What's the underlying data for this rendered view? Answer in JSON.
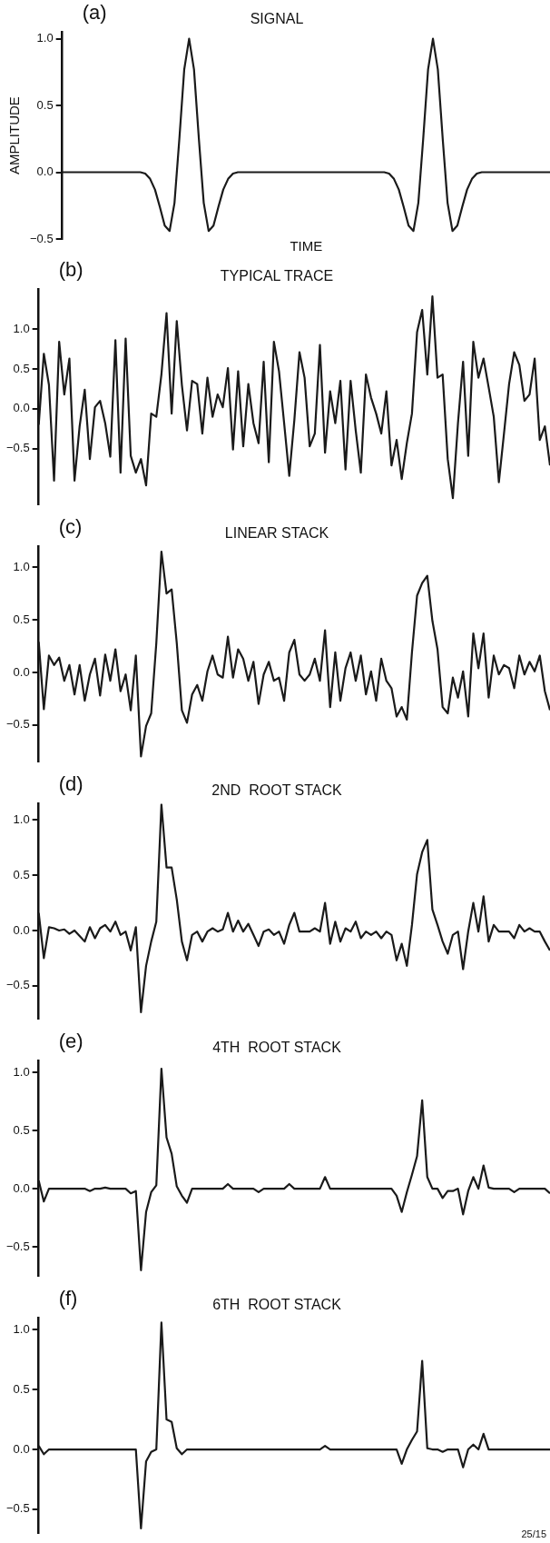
{
  "chart_data": [
    {
      "type": "line",
      "title": "SIGNAL",
      "xlabel": "TIME",
      "ylabel": "AMPLITUDE",
      "annotations": [
        "(a)"
      ],
      "color": "#1a1a1a",
      "tick_labels": "y",
      "grid": false,
      "categories": [
        null,
        null,
        null,
        null,
        null,
        null,
        null,
        null,
        null,
        null,
        null,
        null,
        null,
        null,
        null,
        null,
        null,
        null,
        null,
        null,
        null,
        null,
        null,
        null,
        null,
        null,
        null,
        null,
        null,
        null,
        null,
        null,
        null,
        null,
        null,
        null,
        null,
        null,
        null,
        null,
        null,
        null,
        null,
        null,
        null,
        null,
        null,
        null,
        null,
        null,
        null,
        null,
        null,
        null,
        null,
        null,
        null,
        null,
        null,
        null,
        null,
        null,
        null,
        null,
        null,
        null,
        null,
        null,
        null,
        null,
        null,
        null,
        null,
        null,
        null,
        null,
        null,
        null,
        null,
        null,
        null,
        null,
        null,
        null,
        null,
        null,
        null,
        null,
        null,
        null,
        null,
        null,
        null,
        null,
        null,
        null,
        null,
        null,
        null,
        null,
        null
      ],
      "values": [
        0,
        0,
        0,
        0,
        0,
        0,
        0,
        0,
        0,
        0,
        0,
        0,
        0,
        0,
        0,
        0,
        0,
        -0.01,
        -0.05,
        -0.13,
        -0.26,
        -0.4,
        -0.44,
        -0.23,
        0.25,
        0.77,
        1.0,
        0.77,
        0.25,
        -0.23,
        -0.44,
        -0.4,
        -0.26,
        -0.13,
        -0.05,
        -0.01,
        0,
        0,
        0,
        0,
        0,
        0,
        0,
        0,
        0,
        0,
        0,
        0,
        0,
        0,
        0,
        0,
        0,
        0,
        0,
        0,
        0,
        0,
        0,
        0,
        0,
        0,
        0,
        0,
        0,
        0,
        0,
        -0.01,
        -0.05,
        -0.13,
        -0.26,
        -0.4,
        -0.44,
        -0.23,
        0.25,
        0.77,
        1.0,
        0.77,
        0.25,
        -0.23,
        -0.44,
        -0.4,
        -0.26,
        -0.13,
        -0.05,
        -0.01,
        0,
        0,
        0,
        0,
        0,
        0,
        0,
        0,
        0,
        0,
        0,
        0,
        0,
        0,
        0
      ],
      "ylim": [
        -0.5,
        1.05
      ],
      "yticks": [
        {
          "value": -0.5,
          "label": "−0.5"
        },
        {
          "value": 0,
          "label": "0.0"
        },
        {
          "value": 0.5,
          "label": "0.5"
        },
        {
          "value": 1,
          "label": "1.0"
        }
      ]
    },
    {
      "type": "line",
      "title": "TYPICAL TRACE",
      "annotations": [
        "(b)"
      ],
      "color": "#1a1a1a",
      "tick_labels": "y",
      "grid": false,
      "categories": [
        null,
        null,
        null,
        null,
        null,
        null,
        null,
        null,
        null,
        null,
        null,
        null,
        null,
        null,
        null,
        null,
        null,
        null,
        null,
        null,
        null,
        null,
        null,
        null,
        null,
        null,
        null,
        null,
        null,
        null,
        null,
        null,
        null,
        null,
        null,
        null,
        null,
        null,
        null,
        null,
        null,
        null,
        null,
        null,
        null,
        null,
        null,
        null,
        null,
        null,
        null,
        null,
        null,
        null,
        null,
        null,
        null,
        null,
        null,
        null,
        null,
        null,
        null,
        null,
        null,
        null,
        null,
        null,
        null,
        null,
        null,
        null,
        null,
        null,
        null,
        null,
        null,
        null,
        null,
        null,
        null,
        null,
        null,
        null,
        null,
        null,
        null,
        null,
        null,
        null,
        null,
        null,
        null,
        null,
        null,
        null,
        null,
        null,
        null,
        null,
        null
      ],
      "values": [
        -0.2,
        0.69,
        0.3,
        -0.9,
        0.84,
        0.18,
        0.63,
        -0.9,
        -0.22,
        0.24,
        -0.63,
        0.02,
        0.1,
        -0.18,
        -0.6,
        0.86,
        -0.8,
        0.88,
        -0.59,
        -0.8,
        -0.63,
        -0.96,
        -0.06,
        -0.1,
        0.43,
        1.2,
        -0.06,
        1.1,
        0.3,
        -0.27,
        0.35,
        0.31,
        -0.31,
        0.39,
        -0.1,
        0.18,
        0.02,
        0.51,
        -0.51,
        0.47,
        -0.47,
        0.31,
        -0.18,
        -0.43,
        0.59,
        -0.67,
        0.84,
        0.47,
        -0.18,
        -0.84,
        -0.14,
        0.71,
        0.39,
        -0.47,
        -0.31,
        0.8,
        -0.55,
        0.22,
        -0.18,
        0.35,
        -0.76,
        0.35,
        -0.27,
        -0.8,
        0.43,
        0.14,
        -0.06,
        -0.31,
        0.22,
        -0.71,
        -0.39,
        -0.88,
        -0.43,
        -0.06,
        0.96,
        1.24,
        0.43,
        1.41,
        0.39,
        0.43,
        -0.63,
        -1.12,
        -0.18,
        0.59,
        -0.59,
        0.84,
        0.39,
        0.63,
        0.27,
        -0.1,
        -0.92,
        -0.31,
        0.31,
        0.71,
        0.55,
        0.1,
        0.18,
        0.63,
        -0.39,
        -0.22,
        -0.71
      ],
      "ylim": [
        -1.2,
        1.5
      ],
      "yticks": [
        {
          "value": -0.5,
          "label": "−0.5"
        },
        {
          "value": 0,
          "label": "0.0"
        },
        {
          "value": 0.5,
          "label": "0.5"
        },
        {
          "value": 1,
          "label": "1.0"
        }
      ]
    },
    {
      "type": "line",
      "title": "LINEAR STACK",
      "annotations": [
        "(c)"
      ],
      "color": "#1a1a1a",
      "tick_labels": "y",
      "grid": false,
      "categories": [
        null,
        null,
        null,
        null,
        null,
        null,
        null,
        null,
        null,
        null,
        null,
        null,
        null,
        null,
        null,
        null,
        null,
        null,
        null,
        null,
        null,
        null,
        null,
        null,
        null,
        null,
        null,
        null,
        null,
        null,
        null,
        null,
        null,
        null,
        null,
        null,
        null,
        null,
        null,
        null,
        null,
        null,
        null,
        null,
        null,
        null,
        null,
        null,
        null,
        null,
        null,
        null,
        null,
        null,
        null,
        null,
        null,
        null,
        null,
        null,
        null,
        null,
        null,
        null,
        null,
        null,
        null,
        null,
        null,
        null,
        null,
        null,
        null,
        null,
        null,
        null,
        null,
        null,
        null,
        null,
        null,
        null,
        null,
        null,
        null,
        null,
        null,
        null,
        null,
        null,
        null,
        null,
        null,
        null,
        null,
        null,
        null,
        null,
        null,
        null,
        null
      ],
      "values": [
        0.29,
        -0.35,
        0.16,
        0.07,
        0.14,
        -0.08,
        0.07,
        -0.21,
        0.07,
        -0.27,
        -0.02,
        0.13,
        -0.22,
        0.17,
        -0.08,
        0.22,
        -0.18,
        -0.02,
        -0.36,
        0.16,
        -0.8,
        -0.51,
        -0.39,
        0.28,
        1.15,
        0.75,
        0.79,
        0.28,
        -0.36,
        -0.48,
        -0.21,
        -0.12,
        -0.27,
        0.01,
        0.16,
        -0.02,
        -0.05,
        0.34,
        -0.05,
        0.22,
        0.13,
        -0.08,
        0.1,
        -0.3,
        -0.02,
        0.1,
        -0.08,
        -0.05,
        -0.27,
        0.19,
        0.31,
        -0.02,
        -0.08,
        -0.02,
        0.13,
        -0.08,
        0.4,
        -0.33,
        0.19,
        -0.27,
        0.04,
        0.19,
        -0.08,
        0.16,
        -0.21,
        0.01,
        -0.27,
        0.13,
        -0.08,
        -0.15,
        -0.42,
        -0.33,
        -0.45,
        0.19,
        0.73,
        0.85,
        0.92,
        0.49,
        0.22,
        -0.33,
        -0.39,
        -0.05,
        -0.24,
        0.01,
        -0.42,
        0.37,
        0.04,
        0.37,
        -0.24,
        0.16,
        -0.02,
        0.07,
        0.04,
        -0.15,
        0.16,
        -0.02,
        0.1,
        0.01,
        0.16,
        -0.18,
        -0.36
      ],
      "ylim": [
        -0.85,
        1.2
      ],
      "yticks": [
        {
          "value": -0.5,
          "label": "−0.5"
        },
        {
          "value": 0,
          "label": "0.0"
        },
        {
          "value": 0.5,
          "label": "0.5"
        },
        {
          "value": 1,
          "label": "1.0"
        }
      ]
    },
    {
      "type": "line",
      "title": "2ND  ROOT STACK",
      "annotations": [
        "(d)"
      ],
      "color": "#1a1a1a",
      "tick_labels": "y",
      "grid": false,
      "categories": [
        null,
        null,
        null,
        null,
        null,
        null,
        null,
        null,
        null,
        null,
        null,
        null,
        null,
        null,
        null,
        null,
        null,
        null,
        null,
        null,
        null,
        null,
        null,
        null,
        null,
        null,
        null,
        null,
        null,
        null,
        null,
        null,
        null,
        null,
        null,
        null,
        null,
        null,
        null,
        null,
        null,
        null,
        null,
        null,
        null,
        null,
        null,
        null,
        null,
        null,
        null,
        null,
        null,
        null,
        null,
        null,
        null,
        null,
        null,
        null,
        null,
        null,
        null,
        null,
        null,
        null,
        null,
        null,
        null,
        null,
        null,
        null,
        null,
        null,
        null,
        null,
        null,
        null,
        null,
        null,
        null,
        null,
        null,
        null,
        null,
        null,
        null,
        null,
        null,
        null,
        null,
        null,
        null,
        null,
        null,
        null,
        null,
        null,
        null,
        null,
        null
      ],
      "values": [
        0.16,
        -0.25,
        0.03,
        0.02,
        0,
        0.01,
        -0.03,
        0,
        -0.05,
        -0.1,
        0.03,
        -0.07,
        0.02,
        0.05,
        -0.01,
        0.08,
        -0.04,
        -0.01,
        -0.18,
        0.03,
        -0.74,
        -0.32,
        -0.1,
        0.08,
        1.14,
        0.57,
        0.57,
        0.28,
        -0.1,
        -0.27,
        -0.04,
        -0.01,
        -0.1,
        -0.01,
        0.02,
        -0.01,
        0.01,
        0.16,
        -0.01,
        0.09,
        -0.01,
        0.06,
        -0.04,
        -0.14,
        -0.01,
        0.01,
        -0.04,
        -0.01,
        -0.12,
        0.05,
        0.16,
        -0.01,
        -0.01,
        -0.01,
        0.02,
        -0.01,
        0.25,
        -0.12,
        0.08,
        -0.1,
        0.02,
        -0.01,
        0.08,
        -0.07,
        -0.01,
        -0.04,
        -0.01,
        -0.07,
        -0.01,
        -0.04,
        -0.27,
        -0.12,
        -0.32,
        0.05,
        0.51,
        0.71,
        0.82,
        0.19,
        0.05,
        -0.1,
        -0.21,
        -0.04,
        -0.01,
        -0.35,
        -0.01,
        0.25,
        -0.01,
        0.31,
        -0.1,
        0.05,
        -0.01,
        -0.01,
        -0.01,
        -0.07,
        0.05,
        -0.01,
        0.02,
        -0.01,
        -0.01,
        -0.1,
        -0.18
      ],
      "ylim": [
        -0.8,
        1.15
      ],
      "yticks": [
        {
          "value": -0.5,
          "label": "−0.5"
        },
        {
          "value": 0,
          "label": "0.0"
        },
        {
          "value": 0.5,
          "label": "0.5"
        },
        {
          "value": 1,
          "label": "1.0"
        }
      ]
    },
    {
      "type": "line",
      "title": "4TH  ROOT STACK",
      "annotations": [
        "(e)"
      ],
      "color": "#1a1a1a",
      "tick_labels": "y",
      "grid": false,
      "categories": [
        null,
        null,
        null,
        null,
        null,
        null,
        null,
        null,
        null,
        null,
        null,
        null,
        null,
        null,
        null,
        null,
        null,
        null,
        null,
        null,
        null,
        null,
        null,
        null,
        null,
        null,
        null,
        null,
        null,
        null,
        null,
        null,
        null,
        null,
        null,
        null,
        null,
        null,
        null,
        null,
        null,
        null,
        null,
        null,
        null,
        null,
        null,
        null,
        null,
        null,
        null,
        null,
        null,
        null,
        null,
        null,
        null,
        null,
        null,
        null,
        null,
        null,
        null,
        null,
        null,
        null,
        null,
        null,
        null,
        null,
        null,
        null,
        null,
        null,
        null,
        null,
        null,
        null,
        null,
        null,
        null,
        null,
        null,
        null,
        null,
        null,
        null,
        null,
        null,
        null,
        null,
        null,
        null,
        null,
        null,
        null,
        null,
        null,
        null,
        null,
        null
      ],
      "values": [
        0.07,
        -0.11,
        0,
        0,
        0,
        0,
        0,
        0,
        0,
        0,
        -0.02,
        0,
        0,
        0.01,
        0,
        0,
        0,
        0,
        -0.04,
        -0.02,
        -0.7,
        -0.2,
        -0.03,
        0.03,
        1.03,
        0.44,
        0.3,
        0.02,
        -0.06,
        -0.12,
        0,
        0,
        0,
        0,
        0,
        0,
        0,
        0.04,
        0,
        0,
        0,
        0,
        0,
        -0.03,
        0,
        0,
        0,
        0,
        0,
        0.04,
        0,
        0,
        0,
        0,
        0,
        0,
        0.1,
        0,
        0,
        0,
        0,
        0,
        0,
        0,
        0,
        0,
        0,
        0,
        0,
        0,
        -0.06,
        -0.2,
        -0.03,
        0.12,
        0.28,
        0.76,
        0.1,
        0,
        0,
        -0.08,
        -0.02,
        -0.02,
        0,
        -0.22,
        -0.02,
        0.1,
        0,
        0.2,
        0.01,
        0,
        0,
        0,
        0,
        -0.03,
        0,
        0,
        0,
        0,
        0,
        0,
        -0.04
      ],
      "ylim": [
        -0.75,
        1.1
      ],
      "yticks": [
        {
          "value": -0.5,
          "label": "−0.5"
        },
        {
          "value": 0,
          "label": "0.0"
        },
        {
          "value": 0.5,
          "label": "0.5"
        },
        {
          "value": 1,
          "label": "1.0"
        }
      ]
    },
    {
      "type": "line",
      "title": "6TH  ROOT STACK",
      "annotations": [
        "(f)",
        "25/15"
      ],
      "color": "#1a1a1a",
      "tick_labels": "y",
      "grid": false,
      "categories": [
        null,
        null,
        null,
        null,
        null,
        null,
        null,
        null,
        null,
        null,
        null,
        null,
        null,
        null,
        null,
        null,
        null,
        null,
        null,
        null,
        null,
        null,
        null,
        null,
        null,
        null,
        null,
        null,
        null,
        null,
        null,
        null,
        null,
        null,
        null,
        null,
        null,
        null,
        null,
        null,
        null,
        null,
        null,
        null,
        null,
        null,
        null,
        null,
        null,
        null,
        null,
        null,
        null,
        null,
        null,
        null,
        null,
        null,
        null,
        null,
        null,
        null,
        null,
        null,
        null,
        null,
        null,
        null,
        null,
        null,
        null,
        null,
        null,
        null,
        null,
        null,
        null,
        null,
        null,
        null,
        null,
        null,
        null,
        null,
        null,
        null,
        null,
        null,
        null,
        null,
        null,
        null,
        null,
        null,
        null,
        null,
        null,
        null,
        null,
        null,
        null
      ],
      "values": [
        0.03,
        -0.04,
        0,
        0,
        0,
        0,
        0,
        0,
        0,
        0,
        0,
        0,
        0,
        0,
        0,
        0,
        0,
        0,
        0,
        0,
        -0.66,
        -0.1,
        -0.02,
        0,
        1.06,
        0.25,
        0.23,
        0.01,
        -0.04,
        0,
        0,
        0,
        0,
        0,
        0,
        0,
        0,
        0,
        0,
        0,
        0,
        0,
        0,
        0,
        0,
        0,
        0,
        0,
        0,
        0,
        0,
        0,
        0,
        0,
        0,
        0,
        0.03,
        0,
        0,
        0,
        0,
        0,
        0,
        0,
        0,
        0,
        0,
        0,
        0,
        0,
        0,
        -0.12,
        0,
        0.08,
        0.15,
        0.74,
        0.01,
        0,
        0,
        -0.02,
        0,
        0,
        0,
        -0.15,
        0,
        0.04,
        0,
        0.13,
        0,
        0,
        0,
        0,
        0,
        0,
        0,
        0,
        0,
        0,
        0,
        0,
        0
      ],
      "ylim": [
        -0.7,
        1.1
      ],
      "yticks": [
        {
          "value": -0.5,
          "label": "−0.5"
        },
        {
          "value": 0,
          "label": "0.0"
        },
        {
          "value": 0.5,
          "label": "0.5"
        },
        {
          "value": 1,
          "label": "1.0"
        }
      ]
    }
  ]
}
